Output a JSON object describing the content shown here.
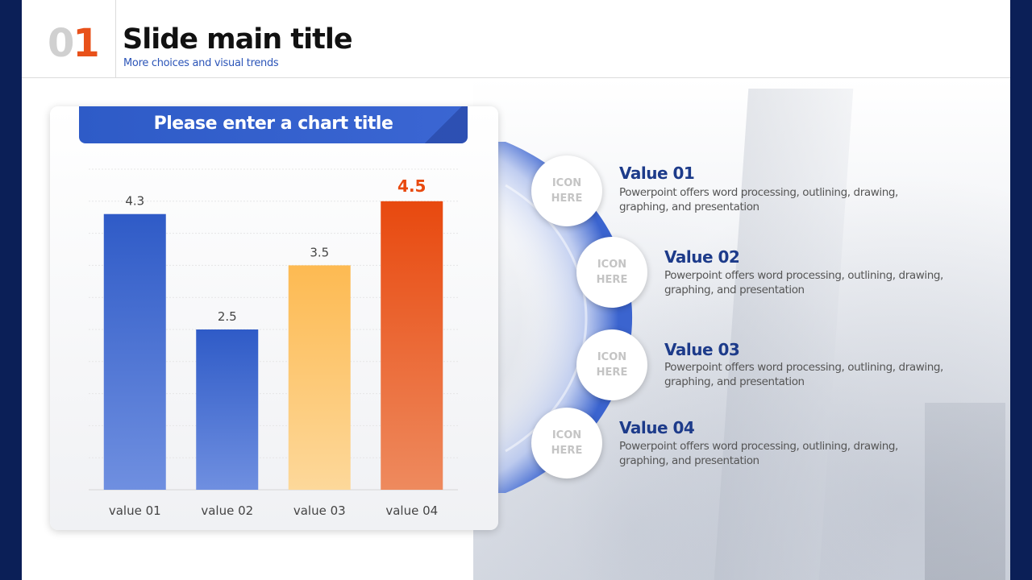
{
  "slide": {
    "number_first": "0",
    "number_second": "1",
    "title": "Slide main title",
    "subtitle": "More choices and visual trends"
  },
  "chart_data": {
    "type": "bar",
    "title": "Please enter a chart title",
    "categories": [
      "value 01",
      "value 02",
      "value 03",
      "value 04"
    ],
    "values": [
      4.3,
      2.5,
      3.5,
      4.5
    ],
    "data_labels": [
      "4.3",
      "2.5",
      "3.5",
      "4.5"
    ],
    "ylim": [
      0,
      5
    ],
    "grid": true,
    "bar_colors": [
      "#2f5bc7",
      "#2f5bc7",
      "#fdba52",
      "#e8490f"
    ],
    "highlight_index": 3
  },
  "items": [
    {
      "icon_text": "ICON HERE",
      "title": "Value 01",
      "desc": "Powerpoint offers word processing, outlining, drawing, graphing, and presentation"
    },
    {
      "icon_text": "ICON HERE",
      "title": "Value 02",
      "desc": "Powerpoint offers word processing, outlining, drawing, graphing, and presentation"
    },
    {
      "icon_text": "ICON HERE",
      "title": "Value 03",
      "desc": "Powerpoint offers word processing, outlining, drawing, graphing, and presentation"
    },
    {
      "icon_text": "ICON HERE",
      "title": "Value 04",
      "desc": "Powerpoint offers word processing, outlining, drawing, graphing, and presentation"
    }
  ],
  "colors": {
    "frame": "#0b1f57",
    "accent_blue": "#2e5bc7",
    "accent_orange": "#e8511a",
    "item_title": "#1d3b8a"
  }
}
